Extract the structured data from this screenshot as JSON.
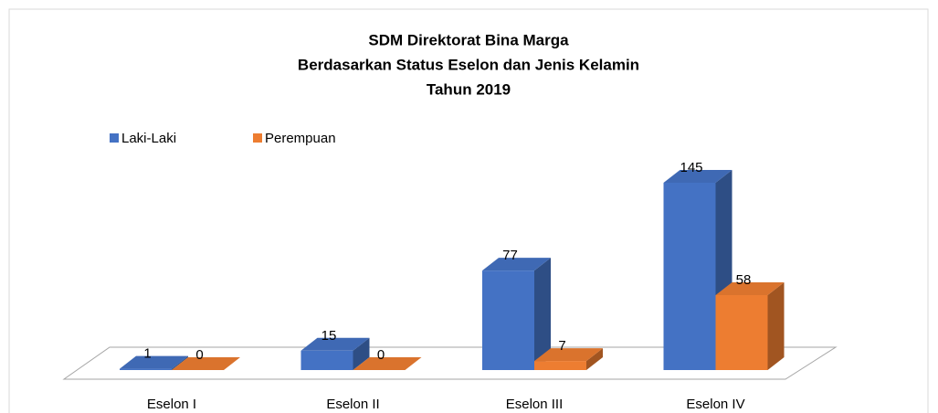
{
  "chart_data": {
    "type": "bar3d",
    "title": [
      "SDM Direktorat Bina Marga",
      "Berdasarkan Status Eselon dan Jenis Kelamin",
      "Tahun 2019"
    ],
    "categories": [
      "Eselon I",
      "Eselon II",
      "Eselon III",
      "Eselon IV"
    ],
    "series": [
      {
        "name": "Laki-Laki",
        "color": "#4472c4",
        "values": [
          1,
          15,
          77,
          145
        ]
      },
      {
        "name": "Perempuan",
        "color": "#ed7d31",
        "values": [
          0,
          0,
          7,
          58
        ]
      }
    ],
    "legend": "top-left"
  }
}
